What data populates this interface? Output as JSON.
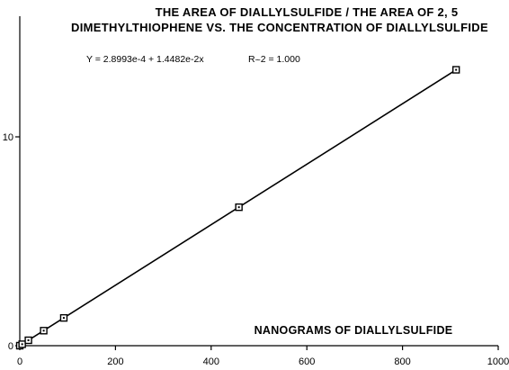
{
  "chart_data": {
    "type": "scatter",
    "title_line1": "THE AREA OF DIALLYLSULFIDE / THE AREA OF 2, 5",
    "title_line2": "DIMETHYLTHIOPHENE VS. THE CONCENTRATION OF DIALLYLSULFIDE",
    "equation": "Y = 2.8993e-4 + 1.4482e-2x",
    "r_squared": "R^2 = 1.000",
    "xlabel": "NANOGRAMS OF DIALLYLSULFIDE",
    "ylabel": "",
    "xlim": [
      0,
      1000
    ],
    "ylim": [
      0,
      14.4
    ],
    "x_ticks": [
      0,
      200,
      400,
      600,
      800,
      1000
    ],
    "y_ticks": [
      0,
      10
    ],
    "grid": false,
    "legend": "none",
    "series": [
      {
        "x": [
          0,
          5,
          18,
          50,
          92,
          458,
          912
        ],
        "y": [
          0.0003,
          0.07,
          0.26,
          0.72,
          1.33,
          6.63,
          13.21
        ]
      }
    ],
    "fit_line": {
      "intercept": 0.00028993,
      "slope": 0.014482,
      "x_range": [
        0,
        912
      ]
    }
  }
}
